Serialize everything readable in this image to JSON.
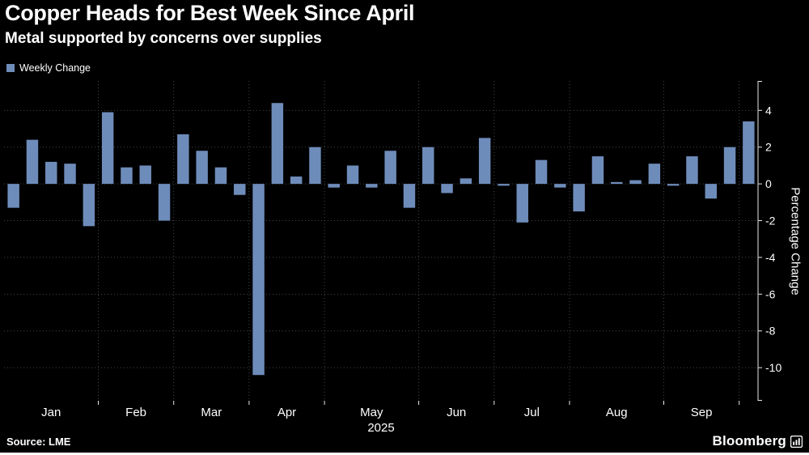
{
  "header": {
    "title": "Copper Heads for Best Week Since April",
    "subtitle": "Metal supported by concerns over supplies"
  },
  "legend": {
    "label": "Weekly Change"
  },
  "footer": {
    "source": "Source: LME",
    "brand": "Bloomberg"
  },
  "chart_data": {
    "type": "bar",
    "title": "Copper Heads for Best Week Since April",
    "subtitle": "Metal supported by concerns over supplies",
    "series_name": "Weekly Change",
    "unit": "percent",
    "ylabel": "Percentage Change",
    "year_label": "2025",
    "ylim": [
      -11.8,
      5.6
    ],
    "yticks": [
      4,
      2,
      0,
      -2,
      -4,
      -6,
      -8,
      -10
    ],
    "months": [
      {
        "label": "Jan",
        "weeks": 5
      },
      {
        "label": "Feb",
        "weeks": 4
      },
      {
        "label": "Mar",
        "weeks": 4
      },
      {
        "label": "Apr",
        "weeks": 4
      },
      {
        "label": "May",
        "weeks": 5
      },
      {
        "label": "Jun",
        "weeks": 4
      },
      {
        "label": "Jul",
        "weeks": 4
      },
      {
        "label": "Aug",
        "weeks": 5
      },
      {
        "label": "Sep",
        "weeks": 4
      },
      {
        "label": "",
        "weeks": 1
      }
    ],
    "values": [
      -1.3,
      2.4,
      1.2,
      1.1,
      -2.3,
      3.9,
      0.9,
      1.0,
      -2.0,
      2.7,
      1.8,
      0.9,
      -0.6,
      -10.4,
      4.4,
      0.4,
      2.0,
      -0.2,
      1.0,
      -0.2,
      1.8,
      -1.3,
      2.0,
      -0.5,
      0.3,
      2.5,
      -0.1,
      -2.1,
      1.3,
      -0.2,
      -1.5,
      1.5,
      0.1,
      0.2,
      1.1,
      -0.1,
      1.5,
      -0.8,
      2.0,
      3.4
    ],
    "bar_color": "#6e8cba",
    "grid_color": "#474747",
    "axis_color": "#e8e8e8",
    "text_color": "#ffffff",
    "background": "#000000",
    "legend_position": "top-left",
    "grid": "dotted"
  }
}
